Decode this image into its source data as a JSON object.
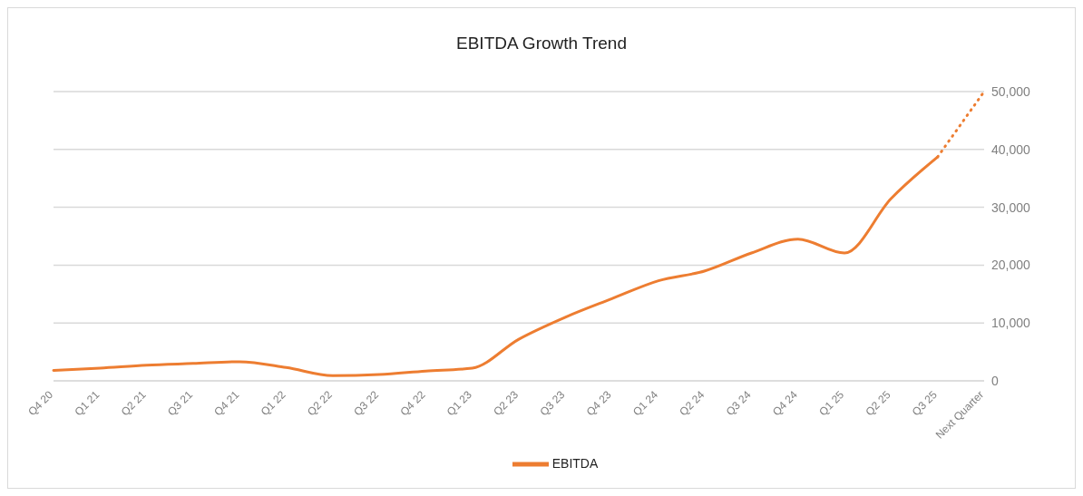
{
  "chart_data": {
    "type": "line",
    "title": "EBITDA Growth Trend",
    "categories": [
      "Q4 20",
      "Q1 21",
      "Q2 21",
      "Q3 21",
      "Q4 21",
      "Q1 22",
      "Q2 22",
      "Q3 22",
      "Q4 22",
      "Q1 23",
      "Q2 23",
      "Q3 23",
      "Q4 23",
      "Q1 24",
      "Q2 24",
      "Q3 24",
      "Q4 24",
      "Q1 25",
      "Q2 25",
      "Q3 25",
      "Next Quarter"
    ],
    "series": [
      {
        "name": "EBITDA",
        "color": "#ed7d31",
        "line_style": "solid",
        "values": [
          1800,
          2200,
          2700,
          3000,
          3300,
          2300,
          900,
          1100,
          1700,
          2200,
          7200,
          11000,
          14200,
          17300,
          19000,
          22100,
          24500,
          22100,
          31500,
          38700,
          null
        ]
      },
      {
        "color": "#ed7d31",
        "line_style": "dotted",
        "values": [
          null,
          null,
          null,
          null,
          null,
          null,
          null,
          null,
          null,
          null,
          null,
          null,
          null,
          null,
          null,
          null,
          null,
          null,
          null,
          38700,
          50000
        ]
      }
    ],
    "ylim": [
      0,
      50000
    ],
    "yticks": [
      {
        "value": 0,
        "label": "0"
      },
      {
        "value": 10000,
        "label": "10,000"
      },
      {
        "value": 20000,
        "label": "20,000"
      },
      {
        "value": 30000,
        "label": "30,000"
      },
      {
        "value": 40000,
        "label": "40,000"
      },
      {
        "value": 50000,
        "label": "50,000"
      }
    ],
    "grid": "y",
    "legend": "bottom"
  }
}
